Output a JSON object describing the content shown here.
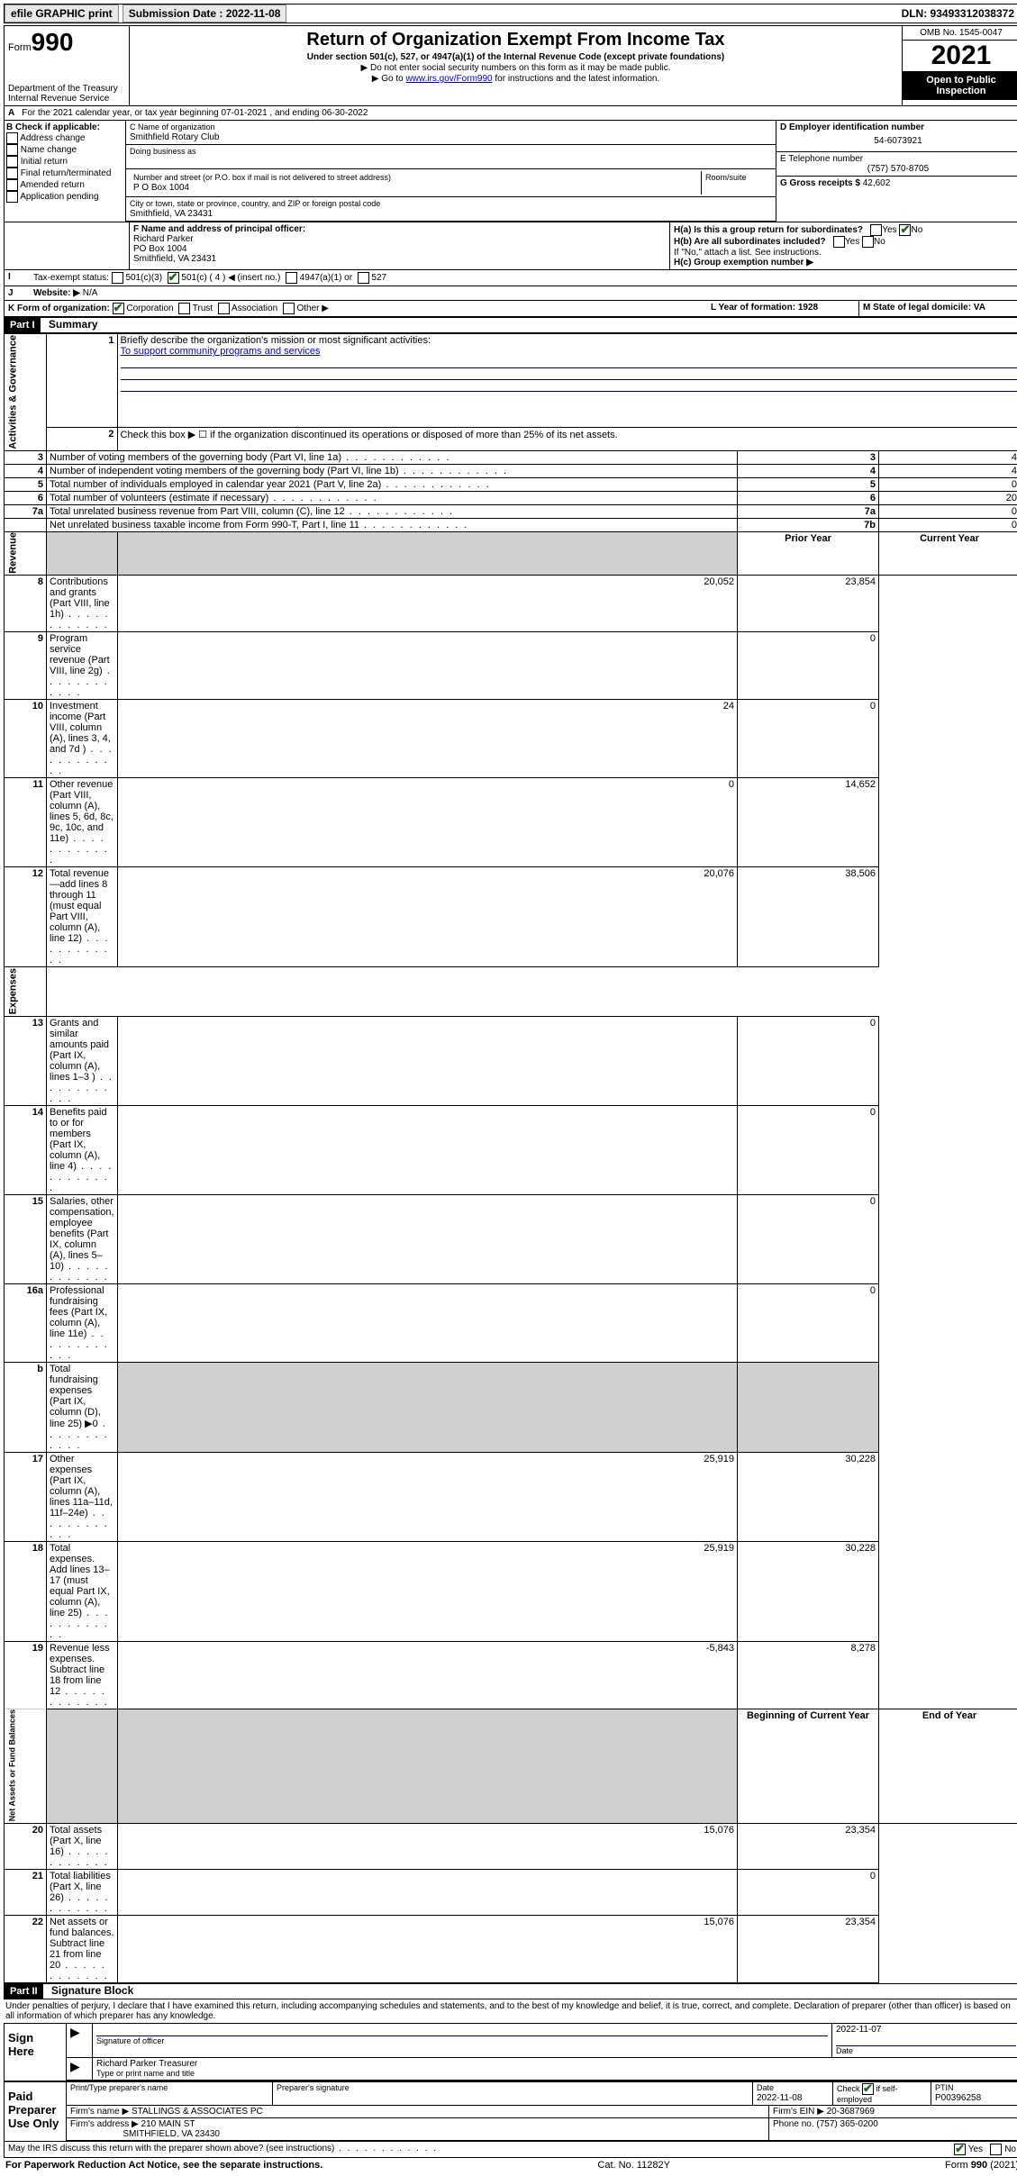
{
  "top": {
    "efile": "efile GRAPHIC print",
    "subdate_lbl": "Submission Date : 2022-11-08",
    "dln": "DLN: 93493312038372"
  },
  "hdr": {
    "form_word": "Form",
    "form_no": "990",
    "dept": "Department of the Treasury",
    "irs": "Internal Revenue Service",
    "title": "Return of Organization Exempt From Income Tax",
    "sub1": "Under section 501(c), 527, or 4947(a)(1) of the Internal Revenue Code (except private foundations)",
    "sub2": "▶ Do not enter social security numbers on this form as it may be made public.",
    "sub3_a": "▶ Go to ",
    "sub3_link": "www.irs.gov/Form990",
    "sub3_b": " for instructions and the latest information.",
    "omb": "OMB No. 1545-0047",
    "year": "2021",
    "open": "Open to Public Inspection"
  },
  "A": {
    "text": "For the 2021 calendar year, or tax year beginning 07-01-2021   , and ending 06-30-2022"
  },
  "B": {
    "lbl": "B Check if applicable:",
    "opts": [
      "Address change",
      "Name change",
      "Initial return",
      "Final return/terminated",
      "Amended return",
      "Application pending"
    ]
  },
  "C": {
    "name_lbl": "C Name of organization",
    "name": "Smithfield Rotary Club",
    "dba_lbl": "Doing business as",
    "addr_lbl": "Number and street (or P.O. box if mail is not delivered to street address)",
    "room_lbl": "Room/suite",
    "addr": "P O Box 1004",
    "city_lbl": "City or town, state or province, country, and ZIP or foreign postal code",
    "city": "Smithfield, VA  23431"
  },
  "D": {
    "lbl": "D Employer identification number",
    "val": "54-6073921"
  },
  "E": {
    "lbl": "E Telephone number",
    "val": "(757) 570-8705"
  },
  "G": {
    "lbl": "G Gross receipts $",
    "val": "42,602"
  },
  "F": {
    "lbl": "F  Name and address of principal officer:",
    "l1": "Richard Parker",
    "l2": "PO Box 1004",
    "l3": "Smithfield, VA  23431"
  },
  "H": {
    "a": "H(a)  Is this a group return for subordinates?",
    "b": "H(b)  Are all subordinates included?",
    "bnote": "If \"No,\" attach a list. See instructions.",
    "c": "H(c)  Group exemption number ▶",
    "yes": "Yes",
    "no": "No"
  },
  "I": {
    "lbl": "Tax-exempt status:",
    "o1": "501(c)(3)",
    "o2": "501(c) ( 4 ) ◀ (insert no.)",
    "o3": "4947(a)(1) or",
    "o4": "527"
  },
  "J": {
    "lbl": "Website: ▶",
    "val": "N/A"
  },
  "K": {
    "lbl": "K Form of organization:",
    "o1": "Corporation",
    "o2": "Trust",
    "o3": "Association",
    "o4": "Other ▶"
  },
  "L": {
    "lbl": "L Year of formation: 1928"
  },
  "M": {
    "lbl": "M State of legal domicile: VA"
  },
  "part1": {
    "bar": "Part I",
    "title": "Summary"
  },
  "s1": {
    "q1": "Briefly describe the organization's mission or most significant activities:",
    "a1": "To support community programs and services",
    "q2": "Check this box ▶ ☐  if the organization discontinued its operations or disposed of more than 25% of its net assets.",
    "rows": [
      {
        "n": "3",
        "t": "Number of voting members of the governing body (Part VI, line 1a)",
        "c": "3",
        "v": "4"
      },
      {
        "n": "4",
        "t": "Number of independent voting members of the governing body (Part VI, line 1b)",
        "c": "4",
        "v": "4"
      },
      {
        "n": "5",
        "t": "Total number of individuals employed in calendar year 2021 (Part V, line 2a)",
        "c": "5",
        "v": "0"
      },
      {
        "n": "6",
        "t": "Total number of volunteers (estimate if necessary)",
        "c": "6",
        "v": "20"
      },
      {
        "n": "7a",
        "t": "Total unrelated business revenue from Part VIII, column (C), line 12",
        "c": "7a",
        "v": "0"
      },
      {
        "n": "",
        "t": "Net unrelated business taxable income from Form 990-T, Part I, line 11",
        "c": "7b",
        "v": "0"
      }
    ]
  },
  "cols": {
    "prior": "Prior Year",
    "curr": "Current Year",
    "boy": "Beginning of Current Year",
    "eoy": "End of Year"
  },
  "rev": [
    {
      "n": "8",
      "t": "Contributions and grants (Part VIII, line 1h)",
      "p": "20,052",
      "c": "23,854"
    },
    {
      "n": "9",
      "t": "Program service revenue (Part VIII, line 2g)",
      "p": "",
      "c": "0"
    },
    {
      "n": "10",
      "t": "Investment income (Part VIII, column (A), lines 3, 4, and 7d )",
      "p": "24",
      "c": "0"
    },
    {
      "n": "11",
      "t": "Other revenue (Part VIII, column (A), lines 5, 6d, 8c, 9c, 10c, and 11e)",
      "p": "0",
      "c": "14,652"
    },
    {
      "n": "12",
      "t": "Total revenue—add lines 8 through 11 (must equal Part VIII, column (A), line 12)",
      "p": "20,076",
      "c": "38,506"
    }
  ],
  "exp": [
    {
      "n": "13",
      "t": "Grants and similar amounts paid (Part IX, column (A), lines 1–3 )",
      "p": "",
      "c": "0"
    },
    {
      "n": "14",
      "t": "Benefits paid to or for members (Part IX, column (A), line 4)",
      "p": "",
      "c": "0"
    },
    {
      "n": "15",
      "t": "Salaries, other compensation, employee benefits (Part IX, column (A), lines 5–10)",
      "p": "",
      "c": "0"
    },
    {
      "n": "16a",
      "t": "Professional fundraising fees (Part IX, column (A), line 11e)",
      "p": "",
      "c": "0"
    },
    {
      "n": "b",
      "t": "Total fundraising expenses (Part IX, column (D), line 25) ▶0",
      "p": "SHADE",
      "c": "SHADE"
    },
    {
      "n": "17",
      "t": "Other expenses (Part IX, column (A), lines 11a–11d, 11f–24e)",
      "p": "25,919",
      "c": "30,228"
    },
    {
      "n": "18",
      "t": "Total expenses. Add lines 13–17 (must equal Part IX, column (A), line 25)",
      "p": "25,919",
      "c": "30,228"
    },
    {
      "n": "19",
      "t": "Revenue less expenses. Subtract line 18 from line 12",
      "p": "-5,843",
      "c": "8,278"
    }
  ],
  "na": [
    {
      "n": "20",
      "t": "Total assets (Part X, line 16)",
      "p": "15,076",
      "c": "23,354"
    },
    {
      "n": "21",
      "t": "Total liabilities (Part X, line 26)",
      "p": "",
      "c": "0"
    },
    {
      "n": "22",
      "t": "Net assets or fund balances. Subtract line 21 from line 20",
      "p": "15,076",
      "c": "23,354"
    }
  ],
  "part2": {
    "bar": "Part II",
    "title": "Signature Block",
    "decl": "Under penalties of perjury, I declare that I have examined this return, including accompanying schedules and statements, and to the best of my knowledge and belief, it is true, correct, and complete. Declaration of preparer (other than officer) is based on all information of which preparer has any knowledge."
  },
  "sign": {
    "here": "Sign Here",
    "sigoff": "Signature of officer",
    "date": "Date",
    "dateval": "2022-11-07",
    "name": "Richard Parker Treasurer",
    "typelbl": "Type or print name and title"
  },
  "paid": {
    "lbl": "Paid Preparer Use Only",
    "h1": "Print/Type preparer's name",
    "h2": "Preparer's signature",
    "h3": "Date",
    "h4": "Check ☑ if self-employed",
    "h5": "PTIN",
    "dateval": "2022-11-08",
    "ptin": "P00396258",
    "firm_lbl": "Firm's name   ▶",
    "firm": "STALLINGS & ASSOCIATES PC",
    "ein_lbl": "Firm's EIN ▶",
    "ein": "20-3687969",
    "addr_lbl": "Firm's address ▶",
    "addr1": "210 MAIN ST",
    "addr2": "SMITHFIELD, VA  23430",
    "phone_lbl": "Phone no.",
    "phone": "(757) 365-0200"
  },
  "discuss": {
    "q": "May the IRS discuss this return with the preparer shown above? (see instructions)",
    "yes": "Yes",
    "no": "No"
  },
  "foot": {
    "l": "For Paperwork Reduction Act Notice, see the separate instructions.",
    "c": "Cat. No. 11282Y",
    "r": "Form 990 (2021)"
  }
}
